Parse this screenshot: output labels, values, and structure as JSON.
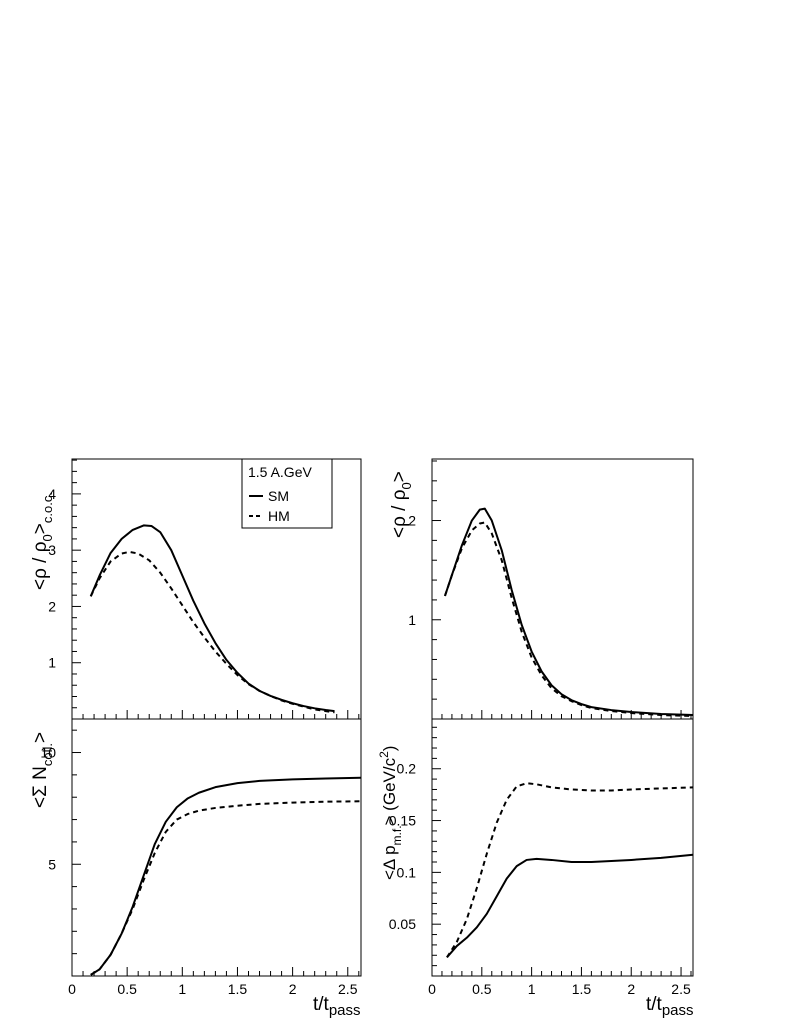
{
  "chart_data": [
    {
      "id": "top-left",
      "type": "line",
      "ylabel": "<ρ / ρ0>c.o.c.",
      "ylabel_parts": {
        "main": "<ρ / ρ",
        "sub": "0",
        "close": ">",
        "sub2": "c.o.c."
      },
      "xlim": [
        0,
        2.62
      ],
      "ylim": [
        0,
        4.62
      ],
      "xticks": [
        0,
        0.5,
        1,
        1.5,
        2,
        2.5
      ],
      "xtick_labels_shown": false,
      "yticks": [
        1,
        2,
        3,
        4
      ],
      "ytick_labels": [
        "1",
        "2",
        "3",
        "4"
      ],
      "legend": {
        "placement": "top-right",
        "title": "1.5 A.GeV",
        "entries": [
          {
            "label": "SM",
            "style": "solid"
          },
          {
            "label": "HM",
            "style": "dashed"
          }
        ]
      },
      "series": [
        {
          "name": "SM",
          "style": "solid",
          "points": [
            [
              0.17,
              2.18
            ],
            [
              0.25,
              2.55
            ],
            [
              0.35,
              2.95
            ],
            [
              0.45,
              3.2
            ],
            [
              0.55,
              3.36
            ],
            [
              0.65,
              3.44
            ],
            [
              0.72,
              3.43
            ],
            [
              0.8,
              3.32
            ],
            [
              0.9,
              3.0
            ],
            [
              1.0,
              2.55
            ],
            [
              1.1,
              2.1
            ],
            [
              1.2,
              1.7
            ],
            [
              1.3,
              1.35
            ],
            [
              1.4,
              1.05
            ],
            [
              1.5,
              0.82
            ],
            [
              1.6,
              0.63
            ],
            [
              1.7,
              0.5
            ],
            [
              1.8,
              0.41
            ],
            [
              1.9,
              0.34
            ],
            [
              2.0,
              0.28
            ],
            [
              2.1,
              0.23
            ],
            [
              2.2,
              0.19
            ],
            [
              2.3,
              0.16
            ],
            [
              2.38,
              0.14
            ]
          ]
        },
        {
          "name": "HM",
          "style": "dashed",
          "points": [
            [
              0.17,
              2.18
            ],
            [
              0.25,
              2.5
            ],
            [
              0.35,
              2.8
            ],
            [
              0.45,
              2.94
            ],
            [
              0.52,
              2.97
            ],
            [
              0.6,
              2.94
            ],
            [
              0.7,
              2.82
            ],
            [
              0.8,
              2.6
            ],
            [
              0.9,
              2.32
            ],
            [
              1.0,
              2.02
            ],
            [
              1.1,
              1.72
            ],
            [
              1.2,
              1.45
            ],
            [
              1.3,
              1.2
            ],
            [
              1.4,
              0.98
            ],
            [
              1.5,
              0.78
            ],
            [
              1.6,
              0.62
            ],
            [
              1.7,
              0.5
            ],
            [
              1.8,
              0.41
            ],
            [
              1.9,
              0.33
            ],
            [
              2.0,
              0.27
            ],
            [
              2.1,
              0.22
            ],
            [
              2.2,
              0.17
            ],
            [
              2.3,
              0.14
            ],
            [
              2.38,
              0.12
            ]
          ]
        }
      ]
    },
    {
      "id": "top-right",
      "type": "line",
      "ylabel": "<ρ / ρ0>",
      "ylabel_parts": {
        "main": "<ρ / ρ",
        "sub": "0",
        "close": ">"
      },
      "xlim": [
        0,
        2.62
      ],
      "ylim": [
        0,
        2.62
      ],
      "xticks": [
        0,
        0.5,
        1,
        1.5,
        2,
        2.5
      ],
      "xtick_labels_shown": false,
      "yticks": [
        1,
        2
      ],
      "ytick_labels": [
        "1",
        "2"
      ],
      "series": [
        {
          "name": "SM",
          "style": "solid",
          "points": [
            [
              0.13,
              1.24
            ],
            [
              0.2,
              1.45
            ],
            [
              0.3,
              1.75
            ],
            [
              0.4,
              2.0
            ],
            [
              0.48,
              2.11
            ],
            [
              0.53,
              2.12
            ],
            [
              0.6,
              2.0
            ],
            [
              0.7,
              1.7
            ],
            [
              0.8,
              1.3
            ],
            [
              0.9,
              0.95
            ],
            [
              1.0,
              0.68
            ],
            [
              1.1,
              0.48
            ],
            [
              1.2,
              0.34
            ],
            [
              1.3,
              0.25
            ],
            [
              1.4,
              0.19
            ],
            [
              1.5,
              0.15
            ],
            [
              1.6,
              0.12
            ],
            [
              1.8,
              0.09
            ],
            [
              2.0,
              0.07
            ],
            [
              2.3,
              0.05
            ],
            [
              2.62,
              0.04
            ]
          ]
        },
        {
          "name": "HM",
          "style": "dashed",
          "points": [
            [
              0.13,
              1.24
            ],
            [
              0.2,
              1.45
            ],
            [
              0.3,
              1.72
            ],
            [
              0.4,
              1.9
            ],
            [
              0.48,
              1.97
            ],
            [
              0.53,
              1.98
            ],
            [
              0.6,
              1.87
            ],
            [
              0.7,
              1.6
            ],
            [
              0.8,
              1.22
            ],
            [
              0.9,
              0.88
            ],
            [
              1.0,
              0.62
            ],
            [
              1.1,
              0.44
            ],
            [
              1.2,
              0.31
            ],
            [
              1.3,
              0.23
            ],
            [
              1.4,
              0.18
            ],
            [
              1.5,
              0.14
            ],
            [
              1.6,
              0.11
            ],
            [
              1.8,
              0.08
            ],
            [
              2.0,
              0.06
            ],
            [
              2.3,
              0.04
            ],
            [
              2.62,
              0.03
            ]
          ]
        }
      ]
    },
    {
      "id": "bottom-left",
      "type": "line",
      "ylabel": "<Σ Ncoll.>",
      "ylabel_parts": {
        "main": "<Σ N",
        "sub": "coll.",
        "close": ">"
      },
      "xlabel": "t/tpass",
      "xlabel_parts": {
        "main": "t/t",
        "sub": "pass"
      },
      "xlim": [
        0,
        2.62
      ],
      "ylim": [
        0,
        11.5
      ],
      "xticks": [
        0,
        0.5,
        1,
        1.5,
        2,
        2.5
      ],
      "xtick_labels": [
        "0",
        "0.5",
        "1",
        "1.5",
        "2",
        "2.5"
      ],
      "yticks": [
        5,
        10
      ],
      "ytick_labels": [
        "5",
        "10"
      ],
      "series": [
        {
          "name": "SM",
          "style": "solid",
          "points": [
            [
              0.17,
              0.05
            ],
            [
              0.25,
              0.3
            ],
            [
              0.35,
              0.95
            ],
            [
              0.45,
              1.9
            ],
            [
              0.55,
              3.1
            ],
            [
              0.65,
              4.5
            ],
            [
              0.75,
              5.9
            ],
            [
              0.85,
              6.9
            ],
            [
              0.95,
              7.55
            ],
            [
              1.05,
              7.95
            ],
            [
              1.15,
              8.2
            ],
            [
              1.3,
              8.45
            ],
            [
              1.5,
              8.63
            ],
            [
              1.7,
              8.73
            ],
            [
              2.0,
              8.8
            ],
            [
              2.3,
              8.84
            ],
            [
              2.62,
              8.87
            ]
          ]
        },
        {
          "name": "HM",
          "style": "dashed",
          "points": [
            [
              0.17,
              0.05
            ],
            [
              0.25,
              0.3
            ],
            [
              0.35,
              0.95
            ],
            [
              0.45,
              1.9
            ],
            [
              0.55,
              3.0
            ],
            [
              0.65,
              4.3
            ],
            [
              0.75,
              5.5
            ],
            [
              0.85,
              6.45
            ],
            [
              0.95,
              7.0
            ],
            [
              1.05,
              7.25
            ],
            [
              1.15,
              7.4
            ],
            [
              1.3,
              7.52
            ],
            [
              1.5,
              7.62
            ],
            [
              1.7,
              7.7
            ],
            [
              2.0,
              7.76
            ],
            [
              2.3,
              7.8
            ],
            [
              2.62,
              7.82
            ]
          ]
        }
      ]
    },
    {
      "id": "bottom-right",
      "type": "line",
      "ylabel": "<Δ pm.f.> (GeV/c2)",
      "ylabel_parts": {
        "main": "<Δ p",
        "sub": "m.f.",
        "close": "> (GeV/c",
        "sup": "2",
        "end": ")"
      },
      "xlabel": "t/tpass",
      "xlabel_parts": {
        "main": "t/t",
        "sub": "pass"
      },
      "xlim": [
        0,
        2.62
      ],
      "ylim": [
        0,
        0.248
      ],
      "xticks": [
        0,
        0.5,
        1,
        1.5,
        2,
        2.5
      ],
      "xtick_labels": [
        "0",
        "0.5",
        "1",
        "1.5",
        "2",
        "2.5"
      ],
      "yticks": [
        0.05,
        0.1,
        0.15,
        0.2
      ],
      "ytick_labels": [
        "0.05",
        "0.1",
        "0.15",
        "0.2"
      ],
      "series": [
        {
          "name": "SM",
          "style": "solid",
          "points": [
            [
              0.15,
              0.018
            ],
            [
              0.25,
              0.029
            ],
            [
              0.35,
              0.037
            ],
            [
              0.45,
              0.047
            ],
            [
              0.55,
              0.06
            ],
            [
              0.65,
              0.077
            ],
            [
              0.75,
              0.094
            ],
            [
              0.85,
              0.106
            ],
            [
              0.95,
              0.112
            ],
            [
              1.05,
              0.113
            ],
            [
              1.2,
              0.112
            ],
            [
              1.4,
              0.11
            ],
            [
              1.6,
              0.11
            ],
            [
              1.8,
              0.111
            ],
            [
              2.0,
              0.112
            ],
            [
              2.3,
              0.114
            ],
            [
              2.62,
              0.117
            ]
          ]
        },
        {
          "name": "HM",
          "style": "dashed",
          "points": [
            [
              0.15,
              0.018
            ],
            [
              0.25,
              0.033
            ],
            [
              0.35,
              0.055
            ],
            [
              0.45,
              0.085
            ],
            [
              0.55,
              0.118
            ],
            [
              0.65,
              0.148
            ],
            [
              0.75,
              0.17
            ],
            [
              0.85,
              0.183
            ],
            [
              0.95,
              0.186
            ],
            [
              1.05,
              0.185
            ],
            [
              1.2,
              0.182
            ],
            [
              1.4,
              0.18
            ],
            [
              1.6,
              0.179
            ],
            [
              1.8,
              0.179
            ],
            [
              2.0,
              0.18
            ],
            [
              2.3,
              0.181
            ],
            [
              2.62,
              0.182
            ]
          ]
        }
      ]
    }
  ]
}
